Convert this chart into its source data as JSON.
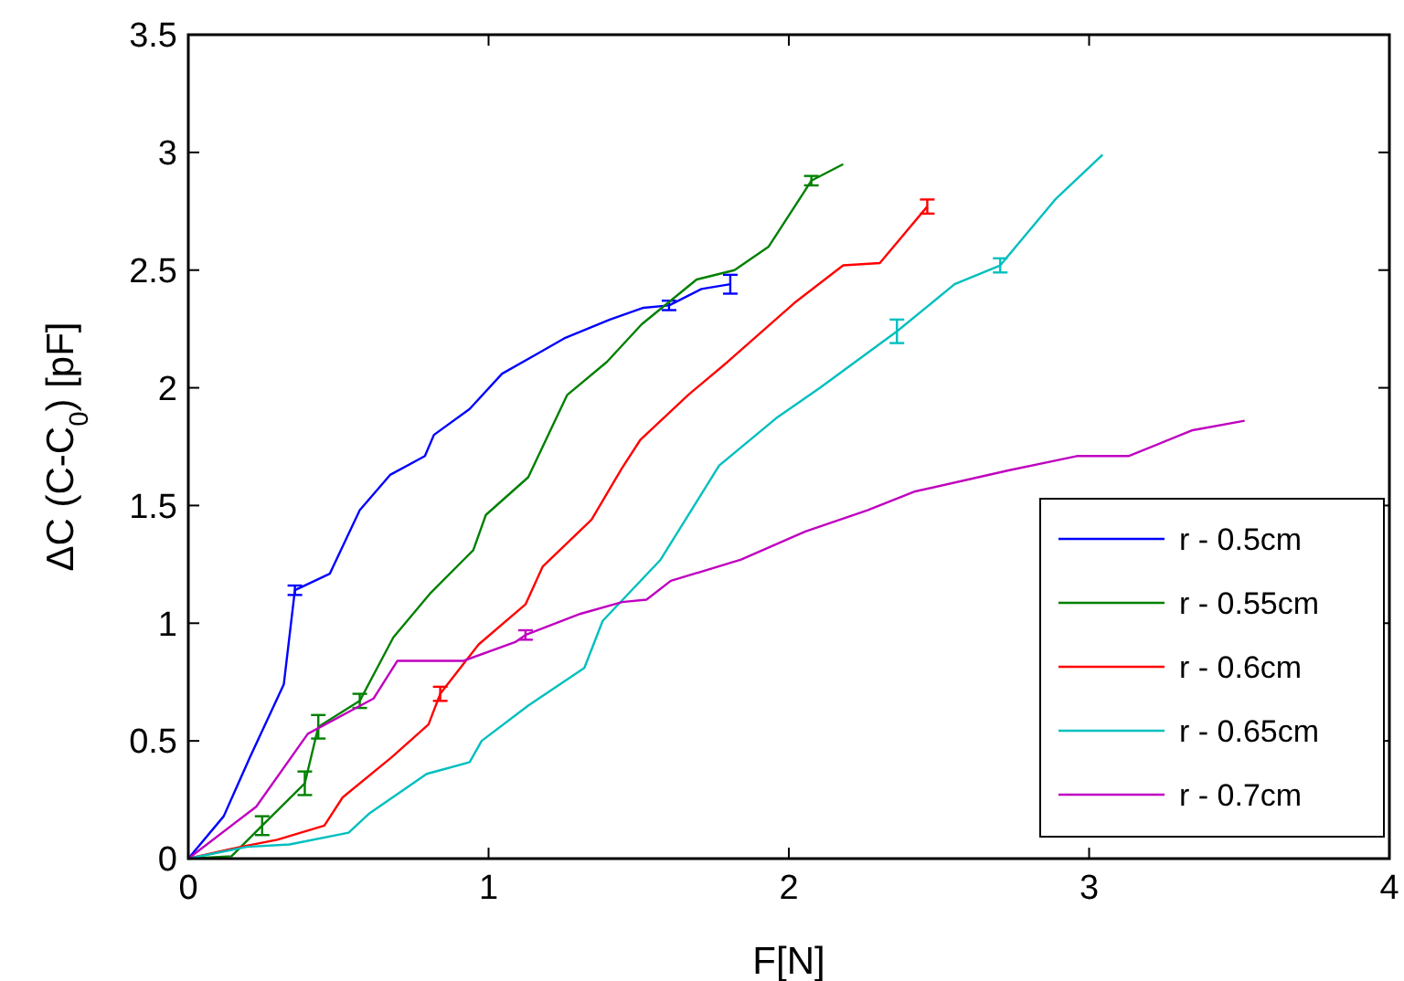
{
  "chart_data": {
    "type": "line",
    "xlabel": "F[N]",
    "ylabel": "ΔC (C-C$_{0}$) [pF]",
    "xlim": [
      0,
      4
    ],
    "ylim": [
      0,
      3.5
    ],
    "xticks": [
      0,
      1,
      2,
      3,
      4
    ],
    "yticks": [
      0,
      0.5,
      1,
      1.5,
      2,
      2.5,
      3,
      3.5
    ],
    "grid": false,
    "legend": "bottom right",
    "marker": "none",
    "line_style": "solid",
    "series": [
      {
        "name": "r - 0.5cm",
        "color": "#0000ff",
        "x": [
          0,
          0.118,
          0.205,
          0.318,
          0.355,
          0.471,
          0.571,
          0.672,
          0.788,
          0.818,
          0.937,
          1.045,
          1.156,
          1.252,
          1.404,
          1.516,
          1.601,
          1.709,
          1.805
        ],
        "values": [
          0,
          0.18,
          0.43,
          0.74,
          1.14,
          1.21,
          1.48,
          1.63,
          1.71,
          1.8,
          1.91,
          2.06,
          2.14,
          2.21,
          2.29,
          2.34,
          2.35,
          2.42,
          2.44
        ],
        "errors": [
          null,
          null,
          null,
          null,
          0.02,
          null,
          null,
          null,
          null,
          null,
          null,
          null,
          null,
          null,
          null,
          null,
          0.02,
          null,
          0.04
        ]
      },
      {
        "name": "r - 0.55cm",
        "color": "#008000",
        "x": [
          0,
          0.144,
          0.246,
          0.388,
          0.433,
          0.571,
          0.683,
          0.808,
          0.949,
          0.991,
          1.132,
          1.262,
          1.394,
          1.51,
          1.693,
          1.819,
          1.933,
          2.075,
          2.181
        ],
        "values": [
          0,
          0.01,
          0.14,
          0.32,
          0.56,
          0.67,
          0.94,
          1.13,
          1.31,
          1.46,
          1.62,
          1.97,
          2.11,
          2.27,
          2.46,
          2.5,
          2.6,
          2.88,
          2.95
        ],
        "errors": [
          null,
          null,
          0.04,
          0.05,
          0.05,
          0.03,
          null,
          null,
          null,
          null,
          null,
          null,
          null,
          null,
          null,
          null,
          null,
          0.02,
          null
        ]
      },
      {
        "name": "r - 0.6cm",
        "color": "#ff0000",
        "x": [
          0,
          0.175,
          0.296,
          0.453,
          0.514,
          0.677,
          0.8,
          0.839,
          0.967,
          1.123,
          1.18,
          1.343,
          1.445,
          1.506,
          1.665,
          1.796,
          2.018,
          2.181,
          2.303,
          2.461
        ],
        "values": [
          0,
          0.05,
          0.08,
          0.14,
          0.26,
          0.43,
          0.57,
          0.7,
          0.91,
          1.08,
          1.24,
          1.44,
          1.66,
          1.78,
          1.97,
          2.11,
          2.36,
          2.52,
          2.53,
          2.77
        ],
        "errors": [
          null,
          null,
          null,
          null,
          null,
          null,
          null,
          0.03,
          null,
          null,
          null,
          null,
          null,
          null,
          null,
          null,
          null,
          null,
          null,
          0.03
        ]
      },
      {
        "name": "r - 0.65cm",
        "color": "#00bfbf",
        "x": [
          0,
          0.195,
          0.337,
          0.534,
          0.601,
          0.794,
          0.937,
          0.977,
          1.132,
          1.319,
          1.38,
          1.573,
          1.768,
          1.957,
          2.104,
          2.36,
          2.552,
          2.704,
          2.887,
          3.045
        ],
        "values": [
          0,
          0.05,
          0.06,
          0.11,
          0.19,
          0.36,
          0.41,
          0.5,
          0.65,
          0.81,
          1.01,
          1.27,
          1.67,
          1.87,
          2,
          2.24,
          2.44,
          2.52,
          2.8,
          2.99
        ],
        "errors": [
          null,
          null,
          null,
          null,
          null,
          null,
          null,
          null,
          null,
          null,
          null,
          null,
          null,
          null,
          null,
          0.05,
          null,
          0.03,
          null,
          null
        ]
      },
      {
        "name": "r - 0.7cm",
        "color": "#bf00bf",
        "x": [
          0,
          0.226,
          0.398,
          0.617,
          0.696,
          0.916,
          1.089,
          1.123,
          1.306,
          1.445,
          1.526,
          1.607,
          1.841,
          2.055,
          2.262,
          2.421,
          2.735,
          2.959,
          3.131,
          3.345,
          3.518
        ],
        "values": [
          0,
          0.22,
          0.53,
          0.68,
          0.84,
          0.84,
          0.92,
          0.95,
          1.04,
          1.09,
          1.1,
          1.18,
          1.27,
          1.39,
          1.48,
          1.56,
          1.65,
          1.71,
          1.71,
          1.82,
          1.86
        ],
        "errors": [
          null,
          null,
          null,
          null,
          null,
          null,
          null,
          0.02,
          null,
          null,
          null,
          null,
          null,
          null,
          null,
          null,
          null,
          null,
          null,
          null,
          null
        ]
      }
    ]
  }
}
